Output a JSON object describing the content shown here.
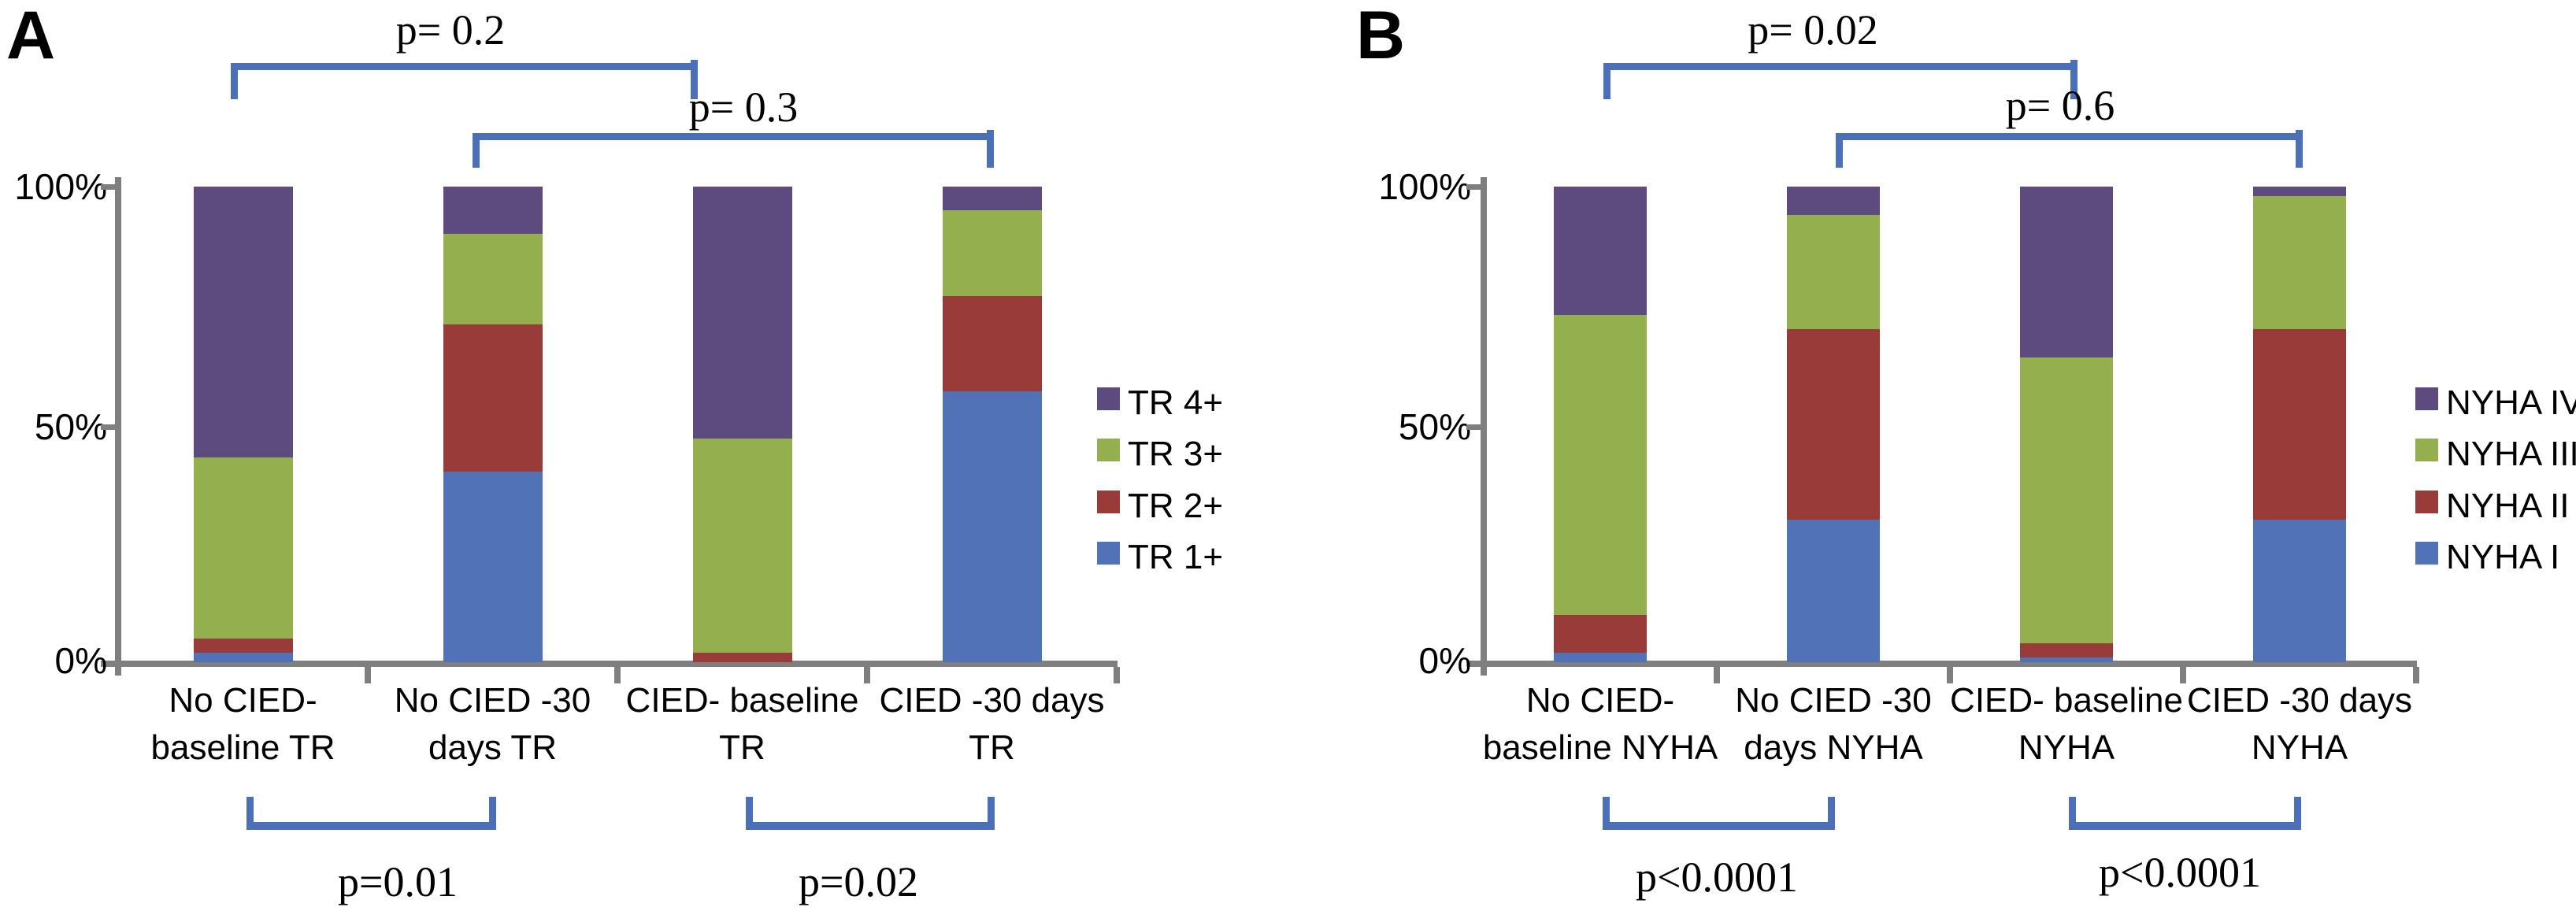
{
  "figure_colors": {
    "blue": "#5172b6",
    "red": "#993c39",
    "green": "#94af4d",
    "purple": "#5d4a7e",
    "bracket_blue": "#4c70b8",
    "axis_gray": "#7f7f7f"
  },
  "chart_data": [
    {
      "type": "bar",
      "subtype": "stacked-percent-column",
      "panel_label": "A",
      "ylabel_ticks": [
        "100%",
        "50%",
        "0%"
      ],
      "ylim": [
        0,
        100
      ],
      "grid": false,
      "legend_position": "right",
      "categories": [
        [
          "No CIED-",
          "baseline TR"
        ],
        [
          "No CIED -30",
          "days TR"
        ],
        [
          "CIED- baseline",
          "TR"
        ],
        [
          "CIED -30 days",
          "TR"
        ]
      ],
      "series": [
        {
          "name": "TR 1+",
          "color_key": "blue",
          "values": [
            2,
            40,
            0,
            57
          ]
        },
        {
          "name": "TR 2+",
          "color_key": "red",
          "values": [
            3,
            31,
            2,
            20
          ]
        },
        {
          "name": "TR 3+",
          "color_key": "green",
          "values": [
            38,
            19,
            45,
            18
          ]
        },
        {
          "name": "TR 4+",
          "color_key": "purple",
          "values": [
            57,
            10,
            53,
            5
          ]
        }
      ],
      "legend_top_to_bottom": [
        "TR 4+",
        "TR 3+",
        "TR 2+",
        "TR 1+"
      ],
      "p_brackets": {
        "top": [
          {
            "label": "p= 0.2",
            "x1": 293,
            "x2": 886,
            "level": 0,
            "text_cx": 572,
            "text_top": 10
          },
          {
            "label": "p= 0.3",
            "x1": 600,
            "x2": 1262,
            "level": 1,
            "text_cx": 944,
            "text_top": 108
          }
        ],
        "bottom": [
          {
            "label": "p=0.01",
            "x1": 313,
            "x2": 630,
            "text_cx": 505,
            "text_top": 1092
          },
          {
            "label": "p=0.02",
            "x1": 947,
            "x2": 1263,
            "text_cx": 1090,
            "text_top": 1092
          }
        ]
      }
    },
    {
      "type": "bar",
      "subtype": "stacked-percent-column",
      "panel_label": "B",
      "ylabel_ticks": [
        "100%",
        "50%",
        "0%"
      ],
      "ylim": [
        0,
        100
      ],
      "grid": false,
      "legend_position": "right",
      "categories": [
        [
          "No CIED-",
          "baseline NYHA"
        ],
        [
          "No CIED -30",
          "days NYHA"
        ],
        [
          "CIED- baseline",
          "NYHA"
        ],
        [
          "CIED -30 days",
          "NYHA"
        ]
      ],
      "series": [
        {
          "name": "NYHA I",
          "color_key": "blue",
          "values": [
            2,
            30,
            1,
            30
          ]
        },
        {
          "name": "NYHA II",
          "color_key": "red",
          "values": [
            8,
            40,
            3,
            40
          ]
        },
        {
          "name": "NYHA III",
          "color_key": "green",
          "values": [
            63,
            24,
            60,
            28
          ]
        },
        {
          "name": "NYHA IV",
          "color_key": "purple",
          "values": [
            27,
            6,
            36,
            2
          ]
        }
      ],
      "legend_top_to_bottom": [
        "NYHA IV",
        "NYHA III",
        "NYHA II",
        "NYHA I"
      ],
      "p_brackets": {
        "top": [
          {
            "label": "p= 0.02",
            "x1": 2036,
            "x2": 2638,
            "level": 0,
            "text_cx": 2302,
            "text_top": 10
          },
          {
            "label": "p= 0.6",
            "x1": 2331,
            "x2": 2924,
            "level": 1,
            "text_cx": 2616,
            "text_top": 106
          }
        ],
        "bottom": [
          {
            "label": "p<0.0001",
            "x1": 2035,
            "x2": 2330,
            "text_cx": 2180,
            "text_top": 1086
          },
          {
            "label": "p<0.0001",
            "x1": 2627,
            "x2": 2922,
            "text_cx": 2768,
            "text_top": 1080
          }
        ]
      }
    }
  ]
}
